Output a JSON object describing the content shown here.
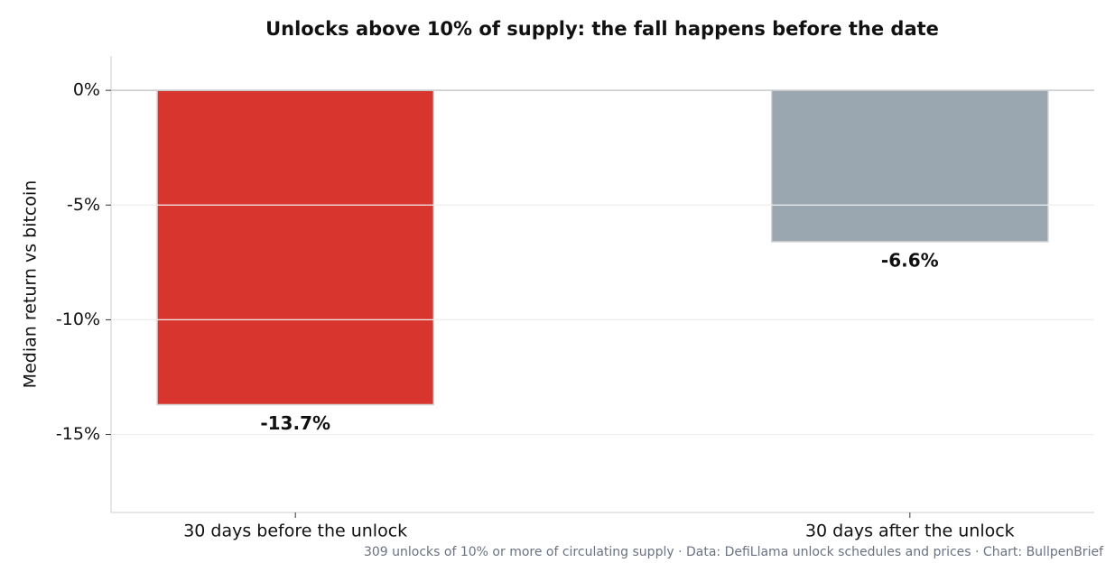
{
  "chart_data": {
    "type": "bar",
    "title": "Unlocks above 10% of supply: the fall happens before the date",
    "y_label": "Median return vs bitcoin",
    "footnote": "309 unlocks of 10% or more of circulating supply · Data: DefiLlama unlock schedules and prices · Chart: BullpenBrief",
    "categories": [
      "30 days before the unlock",
      "30 days after the unlock"
    ],
    "values": [
      -13.7,
      -6.6
    ],
    "value_labels": [
      "-13.7%",
      "-6.6%"
    ],
    "colors": [
      "#d9352f",
      "#9aa7b0"
    ],
    "ylim": [
      -18.4,
      1.5
    ],
    "yticks": [
      {
        "value": 0,
        "label": "0%"
      },
      {
        "value": -5,
        "label": "-5%"
      },
      {
        "value": -10,
        "label": "-10%"
      },
      {
        "value": -15,
        "label": "-15%"
      }
    ],
    "grid": true
  }
}
